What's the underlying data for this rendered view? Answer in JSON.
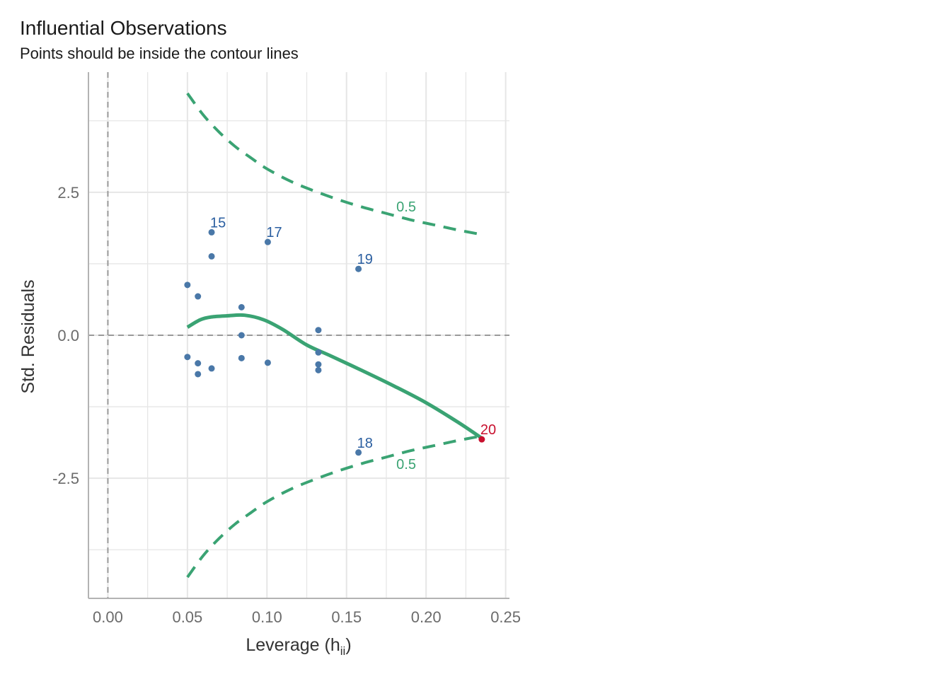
{
  "chart_data": {
    "type": "scatter",
    "title": "Influential Observations",
    "subtitle": "Points should be inside the contour lines",
    "xlabel": "Leverage (h",
    "xlabel_subscript": "ii",
    "xlabel_suffix": ")",
    "ylabel": "Std. Residuals",
    "xlim": [
      -0.0122,
      0.2524
    ],
    "ylim": [
      -4.6,
      4.6
    ],
    "x_ticks": [
      0.0,
      0.05,
      0.1,
      0.15,
      0.2,
      0.25
    ],
    "x_tick_labels": [
      "0.00",
      "0.05",
      "0.10",
      "0.15",
      "0.20",
      "0.25"
    ],
    "y_ticks": [
      -2.5,
      0.0,
      2.5
    ],
    "y_tick_labels": [
      "-2.5",
      "0.0",
      "2.5"
    ],
    "grid": true,
    "colors": {
      "point": "#4a78a8",
      "label": "#2a5ea0",
      "influential": "#c8102e",
      "contour": "#3aa373",
      "reference": "#999999",
      "grid": "#e6e6e6",
      "axis": "#b3b3b3",
      "tick_text": "#6b6b6b",
      "title_text": "#1a1a1a"
    },
    "points": [
      {
        "x": 0.05,
        "y": 0.88
      },
      {
        "x": 0.05,
        "y": -0.38
      },
      {
        "x": 0.0566,
        "y": 0.68
      },
      {
        "x": 0.0566,
        "y": -0.49
      },
      {
        "x": 0.0566,
        "y": -0.68
      },
      {
        "x": 0.0652,
        "y": 1.8,
        "label": "15"
      },
      {
        "x": 0.0652,
        "y": 1.38
      },
      {
        "x": 0.0652,
        "y": -0.58
      },
      {
        "x": 0.084,
        "y": 0.49
      },
      {
        "x": 0.084,
        "y": 0.0
      },
      {
        "x": 0.084,
        "y": -0.4
      },
      {
        "x": 0.1005,
        "y": 1.63,
        "label": "17"
      },
      {
        "x": 0.1005,
        "y": -0.48
      },
      {
        "x": 0.1323,
        "y": 0.09
      },
      {
        "x": 0.1323,
        "y": -0.3
      },
      {
        "x": 0.1323,
        "y": -0.51
      },
      {
        "x": 0.1323,
        "y": -0.61
      },
      {
        "x": 0.1575,
        "y": 1.16,
        "label": "19"
      },
      {
        "x": 0.1575,
        "y": -2.05,
        "label": "18"
      },
      {
        "x": 0.235,
        "y": -1.82,
        "label": "20",
        "influential": true
      }
    ],
    "smooth_line": {
      "x": [
        0.05,
        0.058,
        0.065,
        0.075,
        0.086,
        0.098,
        0.11,
        0.125,
        0.14,
        0.16,
        0.18,
        0.2,
        0.22,
        0.235
      ],
      "y": [
        0.14,
        0.27,
        0.32,
        0.34,
        0.35,
        0.27,
        0.1,
        -0.17,
        -0.36,
        -0.62,
        -0.89,
        -1.18,
        -1.52,
        -1.8
      ]
    },
    "cook_contour_upper": {
      "label": "0.5",
      "x": [
        0.05,
        0.06,
        0.07,
        0.08,
        0.09,
        0.1,
        0.115,
        0.13,
        0.145,
        0.16,
        0.175,
        0.19,
        0.205,
        0.22,
        0.235
      ],
      "y": [
        4.23,
        3.85,
        3.55,
        3.3,
        3.1,
        2.91,
        2.69,
        2.52,
        2.37,
        2.24,
        2.13,
        2.02,
        1.93,
        1.84,
        1.76
      ]
    },
    "cook_contour_lower": {
      "label": "0.5",
      "x": [
        0.05,
        0.06,
        0.07,
        0.08,
        0.09,
        0.1,
        0.115,
        0.13,
        0.145,
        0.16,
        0.175,
        0.19,
        0.205,
        0.22,
        0.235
      ],
      "y": [
        -4.23,
        -3.85,
        -3.55,
        -3.3,
        -3.1,
        -2.91,
        -2.69,
        -2.52,
        -2.37,
        -2.24,
        -2.13,
        -2.02,
        -1.93,
        -1.84,
        -1.76
      ]
    }
  }
}
